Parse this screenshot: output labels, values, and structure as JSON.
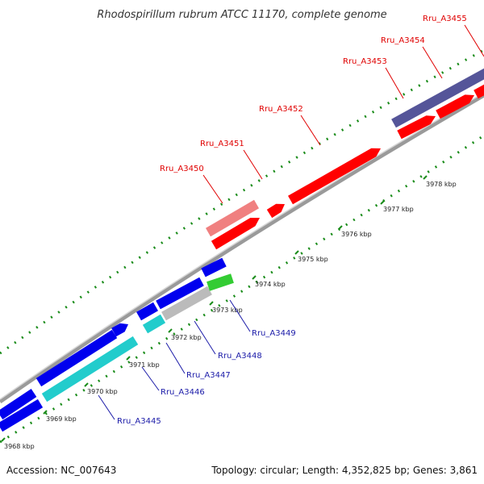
{
  "title": "Rhodospirillum rubrum ATCC 11170, complete genome",
  "accession": "Accession: NC_007643",
  "topology": "Topology: circular; Length: 4,352,825 bp; Genes: 3,861",
  "colors": {
    "cds_forward": "#ff0000",
    "cds_forward_light": "#f08080",
    "cds_reverse": "#0000ee",
    "cds_reverse_cyan": "#22cccc",
    "cds_reverse_gray": "#bbbbbb",
    "cds_reverse_green": "#33cc33",
    "cds_purple": "#555599",
    "backbone": "#999999",
    "ticks": "#1a8c1a"
  },
  "kbp_labels": [
    "3968 kbp",
    "3969 kbp",
    "3970 kbp",
    "3971 kbp",
    "3972 kbp",
    "3973 kbp",
    "3974 kbp",
    "3975 kbp",
    "3976 kbp",
    "3977 kbp",
    "3978 kbp"
  ],
  "forward_genes": [
    "Rru_A3450",
    "Rru_A3451",
    "Rru_A3452",
    "Rru_A3453",
    "Rru_A3454",
    "Rru_A3455"
  ],
  "reverse_genes": [
    "Rru_A3445",
    "Rru_A3446",
    "Rru_A3447",
    "Rru_A3448",
    "Rru_A3449"
  ]
}
